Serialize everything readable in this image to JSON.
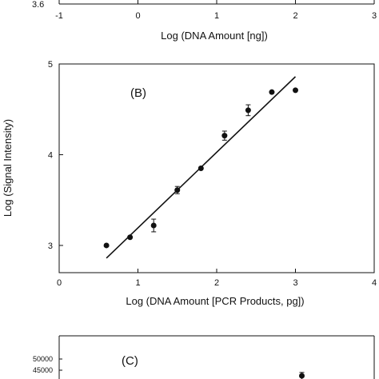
{
  "chart_data": [
    {
      "panel": "top",
      "type": "scatter",
      "xlabel": "Log (DNA Amount [ng])",
      "x_ticks": [
        "-1",
        "0",
        "1",
        "2",
        "3"
      ],
      "y_ticks_visible": [
        "3.6"
      ],
      "xlim": [
        -1,
        3
      ]
    },
    {
      "panel": "B",
      "type": "scatter",
      "label": "(B)",
      "xlabel": "Log (DNA Amount [PCR Products, pg])",
      "ylabel": "Log (Signal Intensity)",
      "xlim": [
        0,
        4
      ],
      "ylim": [
        2.7,
        5.0
      ],
      "x_ticks": [
        "0",
        "1",
        "2",
        "3",
        "4"
      ],
      "y_ticks": [
        "3",
        "4",
        "5"
      ],
      "points": [
        {
          "x": 0.6,
          "y": 3.0,
          "err": 0.0
        },
        {
          "x": 0.9,
          "y": 3.09,
          "err": 0.0
        },
        {
          "x": 1.2,
          "y": 3.22,
          "err": 0.07
        },
        {
          "x": 1.5,
          "y": 3.61,
          "err": 0.04
        },
        {
          "x": 1.8,
          "y": 3.85,
          "err": 0.0
        },
        {
          "x": 2.1,
          "y": 4.21,
          "err": 0.05
        },
        {
          "x": 2.4,
          "y": 4.49,
          "err": 0.06
        },
        {
          "x": 2.7,
          "y": 4.69,
          "err": 0.0
        },
        {
          "x": 3.0,
          "y": 4.71,
          "err": 0.0
        }
      ],
      "fit_line": {
        "x": [
          0.6,
          3.0
        ],
        "y": [
          2.86,
          4.86
        ]
      }
    },
    {
      "panel": "C",
      "type": "scatter",
      "label": "(C)",
      "y_ticks": [
        "50000",
        "45000"
      ],
      "points": [
        {
          "x": 3.0,
          "y": 42500,
          "err": 1500
        }
      ]
    }
  ]
}
